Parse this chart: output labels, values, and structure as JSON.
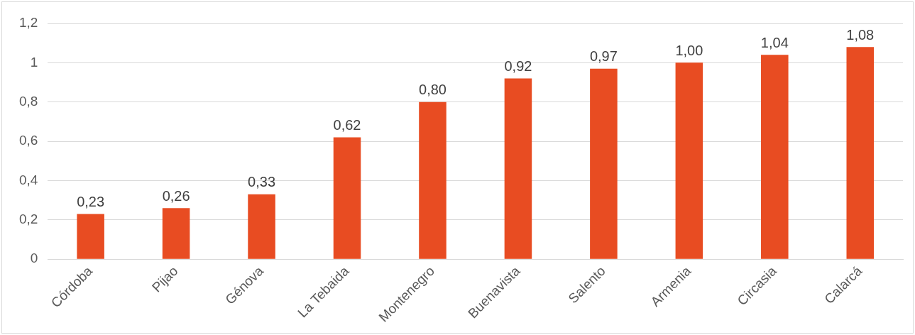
{
  "chart_data": {
    "type": "bar",
    "categories": [
      "Córdoba",
      "Pijao",
      "Génova",
      "La Tebaida",
      "Montenegro",
      "Buenavista",
      "Salento",
      "Armenia",
      "Circasia",
      "Calarcá"
    ],
    "values": [
      0.23,
      0.26,
      0.33,
      0.62,
      0.8,
      0.92,
      0.97,
      1.0,
      1.04,
      1.08
    ],
    "value_labels": [
      "0,23",
      "0,26",
      "0,33",
      "0,62",
      "0,80",
      "0,92",
      "0,97",
      "1,00",
      "1,04",
      "1,08"
    ],
    "color": "#e84c22",
    "ylim": [
      0,
      1.2
    ],
    "yticks": [
      {
        "value": 0,
        "label": "0"
      },
      {
        "value": 0.2,
        "label": "0,2"
      },
      {
        "value": 0.4,
        "label": "0,4"
      },
      {
        "value": 0.6,
        "label": "0,6"
      },
      {
        "value": 0.8,
        "label": "0,8"
      },
      {
        "value": 1,
        "label": "1"
      },
      {
        "value": 1.2,
        "label": "1,2"
      }
    ],
    "grid": "y",
    "legend": false
  }
}
